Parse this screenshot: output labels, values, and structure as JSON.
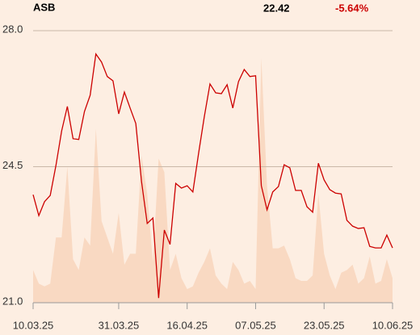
{
  "chart_data": {
    "type": "line",
    "title": "ASB",
    "last_price": "22.42",
    "change": "-5.64%",
    "change_color": "#cc0000",
    "categories": [
      "10.03.25",
      null,
      null,
      null,
      null,
      null,
      null,
      null,
      null,
      null,
      null,
      null,
      null,
      null,
      null,
      "31.03.25",
      null,
      null,
      null,
      null,
      null,
      null,
      null,
      null,
      null,
      null,
      null,
      "16.04.25",
      null,
      null,
      null,
      null,
      null,
      null,
      null,
      null,
      null,
      null,
      null,
      "07.05.25",
      null,
      null,
      null,
      null,
      null,
      null,
      null,
      null,
      null,
      null,
      null,
      "23.05.25",
      null,
      null,
      null,
      null,
      null,
      null,
      null,
      null,
      null,
      null,
      null,
      "10.06.25"
    ],
    "series": [
      {
        "color": "#cc0000",
        "values": [
          23.78,
          23.24,
          23.6,
          23.76,
          24.53,
          25.42,
          26.05,
          25.22,
          25.2,
          25.92,
          26.34,
          27.4,
          27.19,
          26.82,
          26.71,
          25.86,
          26.42,
          26.01,
          25.61,
          24.12,
          23.04,
          23.18,
          21.12,
          22.87,
          22.5,
          24.07,
          23.95,
          24.01,
          23.85,
          24.84,
          25.78,
          26.63,
          26.4,
          26.38,
          26.61,
          26.01,
          26.69,
          27.0,
          26.82,
          26.84,
          24.01,
          23.39,
          23.85,
          23.99,
          24.55,
          24.47,
          23.89,
          23.89,
          23.47,
          23.33,
          24.59,
          24.16,
          23.91,
          23.82,
          23.8,
          23.12,
          22.97,
          22.91,
          22.93,
          22.45,
          22.41,
          22.41,
          22.74,
          22.41
        ]
      },
      {
        "color": "#f9d9c2",
        "axis": "y2",
        "values": [
          12,
          7,
          6,
          7,
          24,
          24,
          50,
          16,
          12,
          24,
          21,
          64,
          30,
          24,
          18,
          33,
          14,
          18,
          18,
          54,
          40,
          15,
          53,
          48,
          12,
          18,
          9,
          5,
          6,
          11,
          15,
          20,
          10,
          7,
          5,
          15,
          12,
          7,
          8,
          5,
          90,
          43,
          20,
          20,
          21,
          16,
          9,
          8,
          8,
          10,
          40,
          18,
          10,
          5,
          11,
          12,
          14,
          7,
          9,
          17,
          7,
          8,
          16,
          9
        ]
      }
    ],
    "ylim": [
      21,
      28
    ],
    "yticks": [
      {
        "value": 21,
        "label": "21.0"
      },
      {
        "value": 24.5,
        "label": "24.5"
      },
      {
        "value": 28,
        "label": "28.0"
      }
    ],
    "y2lim": [
      0,
      100
    ],
    "grid": true
  }
}
